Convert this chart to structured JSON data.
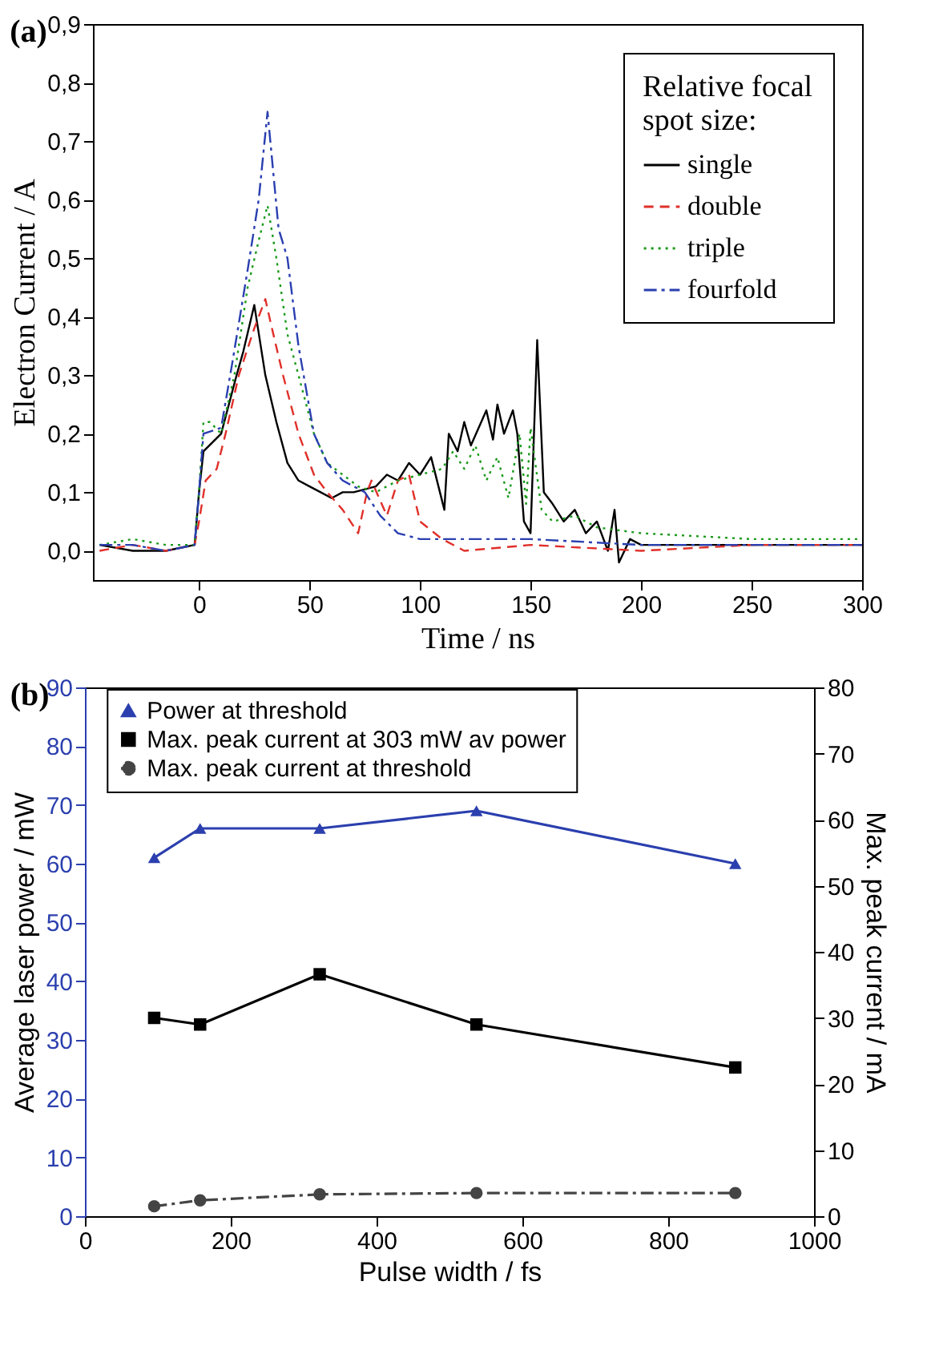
{
  "chart_data": [
    {
      "type": "line",
      "title": "(a)",
      "xlabel": "Time / ns",
      "ylabel": "Electron Current / A",
      "legend_title": "Relative focal spot size:",
      "legend": "top right",
      "grid": false,
      "marker": "none",
      "xlim": [
        -48,
        300
      ],
      "xticks": [
        0,
        50,
        100,
        150,
        200,
        250,
        300
      ],
      "ylim": [
        -0.05,
        0.9
      ],
      "yticks": [
        {
          "value": 0,
          "label": "0,0"
        },
        {
          "value": 0.1,
          "label": "0,1"
        },
        {
          "value": 0.2,
          "label": "0,2"
        },
        {
          "value": 0.3,
          "label": "0,3"
        },
        {
          "value": 0.4,
          "label": "0,4"
        },
        {
          "value": 0.5,
          "label": "0,5"
        },
        {
          "value": 0.6,
          "label": "0,6"
        },
        {
          "value": 0.7,
          "label": "0,7"
        },
        {
          "value": 0.8,
          "label": "0,8"
        },
        {
          "value": 0.9,
          "label": "0,9"
        }
      ],
      "series": [
        {
          "name": "single",
          "color": "#000000",
          "line_style": "solid",
          "x": [
            -45,
            -30,
            -15,
            -2,
            0,
            2,
            10,
            17,
            20,
            25,
            30,
            35,
            40,
            45,
            50,
            55,
            60,
            65,
            70,
            80,
            85,
            90,
            95,
            100,
            105,
            111,
            113,
            117,
            120,
            123,
            130,
            133,
            135,
            138,
            142,
            144,
            147,
            150,
            153,
            156,
            160,
            165,
            170,
            175,
            180,
            185,
            188,
            190,
            195,
            200,
            225,
            250,
            275,
            300
          ],
          "values": [
            0.01,
            0.0,
            0.0,
            0.01,
            0.1,
            0.17,
            0.2,
            0.3,
            0.34,
            0.42,
            0.3,
            0.22,
            0.15,
            0.12,
            0.11,
            0.1,
            0.09,
            0.1,
            0.1,
            0.11,
            0.13,
            0.12,
            0.15,
            0.13,
            0.16,
            0.07,
            0.2,
            0.17,
            0.22,
            0.18,
            0.24,
            0.19,
            0.25,
            0.2,
            0.24,
            0.2,
            0.05,
            0.03,
            0.36,
            0.1,
            0.08,
            0.05,
            0.07,
            0.03,
            0.05,
            0.0,
            0.07,
            -0.02,
            0.02,
            0.01,
            0.01,
            0.01,
            0.01,
            0.01
          ]
        },
        {
          "name": "double",
          "color": "#e0302a",
          "line_style": "dashed",
          "x": [
            -45,
            -30,
            -15,
            -2,
            0,
            3,
            8,
            12,
            18,
            25,
            30,
            33,
            38,
            45,
            52,
            58,
            65,
            72,
            76,
            78,
            85,
            90,
            95,
            100,
            110,
            120,
            150,
            200,
            250,
            300
          ],
          "values": [
            0.0,
            0.01,
            0.0,
            0.01,
            0.05,
            0.12,
            0.14,
            0.2,
            0.3,
            0.38,
            0.43,
            0.38,
            0.3,
            0.2,
            0.13,
            0.1,
            0.07,
            0.03,
            0.1,
            0.12,
            0.06,
            0.12,
            0.13,
            0.05,
            0.02,
            0.0,
            0.01,
            0.0,
            0.01,
            0.01
          ]
        },
        {
          "name": "triple",
          "color": "#1a9a1a",
          "line_style": "dotted",
          "x": [
            -45,
            -30,
            -15,
            -2,
            0,
            2,
            5,
            10,
            16,
            22,
            27,
            31,
            35,
            40,
            45,
            52,
            58,
            65,
            72,
            80,
            90,
            100,
            110,
            115,
            120,
            125,
            130,
            135,
            140,
            145,
            148,
            150,
            155,
            160,
            170,
            180,
            200,
            250,
            300
          ],
          "values": [
            0.01,
            0.02,
            0.01,
            0.01,
            0.1,
            0.22,
            0.22,
            0.2,
            0.3,
            0.45,
            0.53,
            0.59,
            0.5,
            0.37,
            0.3,
            0.2,
            0.15,
            0.13,
            0.11,
            0.1,
            0.12,
            0.13,
            0.14,
            0.17,
            0.14,
            0.18,
            0.12,
            0.16,
            0.09,
            0.2,
            0.08,
            0.21,
            0.07,
            0.05,
            0.06,
            0.04,
            0.03,
            0.02,
            0.02
          ]
        },
        {
          "name": "fourfold",
          "color": "#2a3fb0",
          "line_style": "dashdot",
          "x": [
            -45,
            -30,
            -15,
            -2,
            0,
            2,
            10,
            15,
            22,
            27,
            31,
            36,
            40,
            45,
            52,
            58,
            65,
            75,
            82,
            90,
            100,
            150,
            200,
            250,
            300
          ],
          "values": [
            0.01,
            0.01,
            0.0,
            0.01,
            0.1,
            0.2,
            0.21,
            0.32,
            0.48,
            0.6,
            0.75,
            0.55,
            0.5,
            0.35,
            0.2,
            0.15,
            0.12,
            0.1,
            0.06,
            0.03,
            0.02,
            0.02,
            0.01,
            0.01,
            0.01
          ]
        }
      ]
    },
    {
      "type": "line",
      "title": "(b)",
      "xlabel": "Pulse width / fs",
      "ylabel": "Average laser power / mW",
      "y2label": "Max. peak current / mA",
      "legend": "top",
      "grid": false,
      "x": [
        95,
        158,
        322,
        537,
        892
      ],
      "xlim": [
        0,
        1000
      ],
      "xticks": [
        0,
        200,
        400,
        600,
        800,
        1000
      ],
      "ylim": [
        0,
        90
      ],
      "yticks": [
        0,
        10,
        20,
        30,
        40,
        50,
        60,
        70,
        80,
        90
      ],
      "y2lim": [
        0,
        80
      ],
      "y2ticks": [
        0,
        10,
        20,
        30,
        40,
        50,
        60,
        70,
        80
      ],
      "series": [
        {
          "name": "Power at threshold",
          "color": "#2b3fae",
          "marker": "triangle",
          "line_style": "solid",
          "values": [
            61,
            66,
            66,
            69,
            60
          ]
        },
        {
          "name": "Max. peak current at 303 mW av power",
          "color": "#000000",
          "marker": "square",
          "line_style": "solid",
          "axis": "y2",
          "values": [
            30,
            29,
            36.6,
            29,
            22.5
          ]
        },
        {
          "name": "Max. peak current at threshold",
          "color": "#444444",
          "marker": "circle",
          "line_style": "dashdot",
          "axis": "y2",
          "values": [
            1.5,
            2.4,
            3.3,
            3.5,
            3.5
          ]
        }
      ]
    }
  ]
}
